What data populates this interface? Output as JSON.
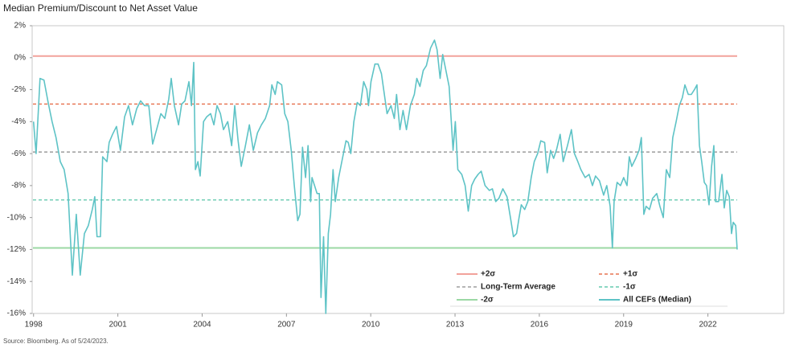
{
  "chart_data": {
    "type": "line",
    "title": "Median Premium/Discount to Net Asset Value",
    "source": "Source: Bloomberg. As of 5/24/2023.",
    "xlim": [
      1997.95,
      2024.7
    ],
    "xticks": [
      1998,
      2001,
      2004,
      2007,
      2010,
      2013,
      2016,
      2019,
      2022
    ],
    "ylim": [
      -16,
      2
    ],
    "yticks": [
      {
        "value": 2,
        "label": "2%"
      },
      {
        "value": 0,
        "label": "0%"
      },
      {
        "value": -2,
        "label": "-2%"
      },
      {
        "value": -4,
        "label": "-4%"
      },
      {
        "value": -6,
        "label": "-6%"
      },
      {
        "value": -8,
        "label": "-8%"
      },
      {
        "value": -10,
        "label": "-10%"
      },
      {
        "value": -12,
        "label": "-12%"
      },
      {
        "value": -14,
        "label": "-14%"
      },
      {
        "value": -16,
        "label": "-16%"
      }
    ],
    "grid": false,
    "legend": "lower right",
    "reference_lines": [
      {
        "name": "+2σ",
        "value": 0.1,
        "color": "#f2a29b",
        "style": "solid"
      },
      {
        "name": "+1σ",
        "value": -2.9,
        "color": "#e2572f",
        "style": "dashed"
      },
      {
        "name": "Long-Term Average",
        "value": -5.9,
        "color": "#8a8a8a",
        "style": "dashed"
      },
      {
        "name": "-1σ",
        "value": -8.9,
        "color": "#45bf9f",
        "style": "dashed"
      },
      {
        "name": "-2σ",
        "value": -11.9,
        "color": "#9bd8a4",
        "style": "solid"
      }
    ],
    "series": [
      {
        "name": "All CEFs (Median)",
        "color": "#5ec3c6",
        "x": [
          1998.0,
          1998.09,
          1998.23,
          1998.37,
          1998.52,
          1998.66,
          1998.8,
          1998.95,
          1999.09,
          1999.23,
          1999.38,
          1999.52,
          1999.66,
          1999.81,
          1999.95,
          2000.09,
          2000.18,
          2000.26,
          2000.38,
          2000.46,
          2000.61,
          2000.69,
          2000.81,
          2000.95,
          2001.09,
          2001.24,
          2001.38,
          2001.52,
          2001.67,
          2001.81,
          2001.95,
          2002.1,
          2002.24,
          2002.38,
          2002.53,
          2002.67,
          2002.81,
          2002.9,
          2003.01,
          2003.16,
          2003.27,
          2003.39,
          2003.53,
          2003.62,
          2003.7,
          2003.76,
          2003.85,
          2003.93,
          2004.05,
          2004.16,
          2004.3,
          2004.42,
          2004.53,
          2004.65,
          2004.76,
          2004.91,
          2005.05,
          2005.16,
          2005.28,
          2005.39,
          2005.54,
          2005.68,
          2005.82,
          2005.97,
          2006.11,
          2006.25,
          2006.4,
          2006.48,
          2006.6,
          2006.68,
          2006.83,
          2006.94,
          2007.05,
          2007.17,
          2007.28,
          2007.4,
          2007.48,
          2007.57,
          2007.68,
          2007.77,
          2007.86,
          2007.91,
          2008.0,
          2008.09,
          2008.17,
          2008.23,
          2008.32,
          2008.4,
          2008.49,
          2008.57,
          2008.66,
          2008.74,
          2008.86,
          2008.97,
          2009.12,
          2009.2,
          2009.29,
          2009.4,
          2009.52,
          2009.63,
          2009.75,
          2009.86,
          2009.92,
          2010.01,
          2010.15,
          2010.26,
          2010.38,
          2010.46,
          2010.58,
          2010.72,
          2010.84,
          2010.92,
          2011.04,
          2011.15,
          2011.27,
          2011.41,
          2011.55,
          2011.64,
          2011.75,
          2011.87,
          2011.98,
          2012.13,
          2012.27,
          2012.36,
          2012.47,
          2012.56,
          2012.64,
          2012.79,
          2012.93,
          2013.01,
          2013.1,
          2013.24,
          2013.36,
          2013.47,
          2013.59,
          2013.7,
          2013.82,
          2013.93,
          2014.07,
          2014.22,
          2014.33,
          2014.45,
          2014.56,
          2014.7,
          2014.85,
          2014.99,
          2015.08,
          2015.19,
          2015.28,
          2015.36,
          2015.48,
          2015.59,
          2015.71,
          2015.82,
          2015.94,
          2016.05,
          2016.19,
          2016.28,
          2016.4,
          2016.51,
          2016.62,
          2016.74,
          2016.85,
          2017.0,
          2017.14,
          2017.25,
          2017.37,
          2017.48,
          2017.63,
          2017.77,
          2017.89,
          2018.0,
          2018.14,
          2018.29,
          2018.4,
          2018.52,
          2018.6,
          2018.66,
          2018.77,
          2018.89,
          2019.0,
          2019.12,
          2019.2,
          2019.29,
          2019.43,
          2019.55,
          2019.63,
          2019.72,
          2019.8,
          2019.92,
          2020.03,
          2020.18,
          2020.29,
          2020.41,
          2020.52,
          2020.64,
          2020.75,
          2020.87,
          2020.98,
          2021.09,
          2021.18,
          2021.3,
          2021.41,
          2021.52,
          2021.61,
          2021.7,
          2021.78,
          2021.87,
          2021.95,
          2022.04,
          2022.13,
          2022.21,
          2022.27,
          2022.38,
          2022.5,
          2022.58,
          2022.67,
          2022.76,
          2022.84,
          2022.9,
          2022.99,
          2023.04
        ],
        "values": [
          -4,
          -6,
          -1.3,
          -1.4,
          -2.8,
          -4,
          -5,
          -6.5,
          -7,
          -8.5,
          -13.6,
          -9.8,
          -13.6,
          -11,
          -10.5,
          -9.5,
          -8.7,
          -11.2,
          -11.2,
          -6.2,
          -6.5,
          -5.3,
          -4.8,
          -4.3,
          -5.8,
          -3.7,
          -3,
          -4.2,
          -3.2,
          -2.7,
          -3,
          -3,
          -5.4,
          -4.5,
          -3.5,
          -3.8,
          -2.6,
          -1.3,
          -3,
          -4.2,
          -2.9,
          -2.7,
          -1.5,
          -3,
          -0.3,
          -7,
          -6.5,
          -7.4,
          -4,
          -3.7,
          -3.5,
          -4.2,
          -3,
          -3.5,
          -4.5,
          -4,
          -5.5,
          -3,
          -5.2,
          -6.8,
          -5.5,
          -4.2,
          -5.8,
          -4.7,
          -4.2,
          -3.8,
          -3,
          -1.7,
          -2.3,
          -1.5,
          -1.7,
          -3.5,
          -4,
          -5.8,
          -8,
          -10.2,
          -9.8,
          -5.6,
          -7.5,
          -5.5,
          -9,
          -7.5,
          -8,
          -8.5,
          -8.5,
          -15,
          -11.2,
          -16,
          -11,
          -9.8,
          -7,
          -9,
          -7.5,
          -6.5,
          -5.2,
          -5.3,
          -6,
          -4,
          -2.8,
          -3,
          -1.5,
          -2,
          -3,
          -1.5,
          -0.4,
          -0.4,
          -1,
          -2,
          -3.5,
          -3,
          -3.8,
          -2.3,
          -4.5,
          -3.3,
          -4.5,
          -3,
          -2.3,
          -1.3,
          -1.8,
          -0.8,
          -0.5,
          0.6,
          1.1,
          0.5,
          -1.3,
          0.2,
          -0.5,
          -1.8,
          -5.8,
          -4,
          -7,
          -7.3,
          -8,
          -9.6,
          -8,
          -7.6,
          -7.3,
          -7.1,
          -8,
          -8.3,
          -8.2,
          -9,
          -8.8,
          -8.2,
          -8.7,
          -10.2,
          -11.2,
          -11,
          -10,
          -9.2,
          -9.5,
          -9,
          -7.5,
          -6.5,
          -6,
          -5.2,
          -5.3,
          -7.2,
          -5.8,
          -6.3,
          -5.7,
          -4.8,
          -6.5,
          -5.5,
          -4.5,
          -6,
          -6.5,
          -7,
          -7.5,
          -7.3,
          -8,
          -7.4,
          -7.7,
          -8.6,
          -8,
          -9.3,
          -11.9,
          -9,
          -7.8,
          -8,
          -7.5,
          -8,
          -6.2,
          -6.8,
          -6.3,
          -5.8,
          -5,
          -9.8,
          -9.3,
          -9.5,
          -8.8,
          -8.5,
          -9.3,
          -10,
          -7,
          -7.5,
          -5,
          -4,
          -3,
          -2.5,
          -1.7,
          -2.3,
          -2.3,
          -2,
          -1.7,
          -5.5,
          -6.5,
          -7.8,
          -8,
          -9.2,
          -6.8,
          -5.5,
          -9,
          -9,
          -7.3,
          -9.4,
          -8.3,
          -8.7,
          -11,
          -10.3,
          -10.5,
          -12
        ]
      }
    ]
  }
}
